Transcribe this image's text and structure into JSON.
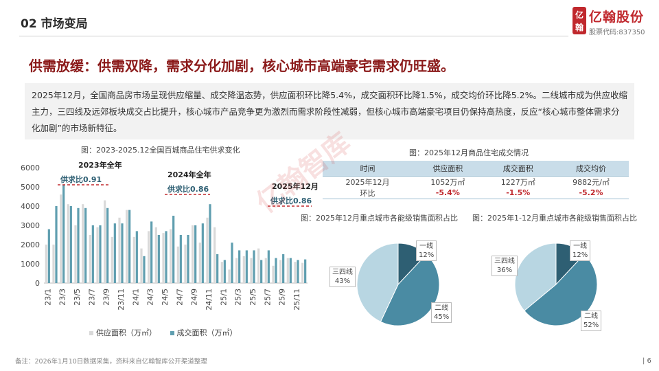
{
  "header": {
    "section_title": "02 市场变局"
  },
  "logo": {
    "mark_top": "亿",
    "mark_bottom": "翰",
    "name": "亿翰股份",
    "code": "股票代码:837350"
  },
  "headline": "供需放缓：供需双降，需求分化加剧，核心城市高端豪宅需求仍旺盛。",
  "summary": "2025年12月，全国商品房市场呈现供应缩量、成交降温态势，供应面积环比降5.4%，成交面积环比降1.5%，成交均价环比降5.2%。二线城市成为供应收缩主力，三四线及远郊板块成交占比提升，核心城市产品竞争更为激烈而需求阶段性减弱，但核心城市高端豪宅项目仍保持高热度，反应“核心城市整体需求分化加剧”的市场新特征。",
  "captions": {
    "bar": "图：2023-2025.12全国百城商品住宅供求变化",
    "table": "图：2025年12月商品住宅成交情况",
    "pie1": "图：2025年12月重点城市各能级销售面积占比",
    "pie2": "图：2025年1-12月重点城市各能级销售面积占比"
  },
  "table": {
    "headers": [
      "时间",
      "供应面积",
      "成交面积",
      "成交均价"
    ],
    "rows": [
      [
        "2025年12月",
        "1052万㎡",
        "1227万㎡",
        "9882元/㎡"
      ],
      [
        "环比",
        "-5.4%",
        "-1.5%",
        "-5.2%"
      ]
    ]
  },
  "legend": {
    "supply": "供应面积（万㎡）",
    "deal": "成交面积（万㎡）"
  },
  "annotations": [
    {
      "title": "2023年全年",
      "value": "供求比0.91"
    },
    {
      "title": "2024年全年",
      "value": "供求比0.86"
    },
    {
      "title": "2025年12月",
      "value": "供求比0.86"
    }
  ],
  "watermark": "亿翰智库",
  "footnote": "备注：2026年1月10日数据采集，资料来自亿翰智库公开渠道整理",
  "page_number": "| 6",
  "colors": {
    "accent": "#8b1a1a",
    "brand": "#c0282d",
    "supply": "#d9d9d9",
    "deal": "#5f9eaf",
    "pie_tier1": "#2e5f73",
    "pie_tier2": "#4a8ba3",
    "pie_tier34": "#b8d6e2"
  },
  "chart_data": [
    {
      "type": "bar",
      "title": "",
      "ylim": [
        0,
        6000
      ],
      "yticks": [
        0,
        1000,
        2000,
        3000,
        4000,
        5000,
        6000
      ],
      "x_tick_labels": [
        "23/1",
        "23/3",
        "23/5",
        "23/7",
        "23/9",
        "23/11",
        "24/1",
        "24/3",
        "24/5",
        "24/7",
        "24/9",
        "24/11",
        "25/1",
        "25/3",
        "25/5",
        "25/7",
        "25/9",
        "25/11"
      ],
      "categories": [
        "23/1",
        "23/2",
        "23/3",
        "23/4",
        "23/5",
        "23/6",
        "23/7",
        "23/8",
        "23/9",
        "23/10",
        "23/11",
        "23/12",
        "24/1",
        "24/2",
        "24/3",
        "24/4",
        "24/5",
        "24/6",
        "24/7",
        "24/8",
        "24/9",
        "24/10",
        "24/11",
        "24/12",
        "25/1",
        "25/2",
        "25/3",
        "25/4",
        "25/5",
        "25/6",
        "25/7",
        "25/8",
        "25/9",
        "25/10",
        "25/11",
        "25/12"
      ],
      "series": [
        {
          "name": "供应面积（万㎡）",
          "values": [
            2000,
            2000,
            4600,
            4100,
            3000,
            4100,
            2500,
            2900,
            4300,
            2400,
            3400,
            3800,
            2400,
            1800,
            2700,
            2900,
            2600,
            2800,
            1900,
            2000,
            3000,
            2100,
            3400,
            2900,
            1100,
            700,
            1300,
            1400,
            1300,
            1800,
            1300,
            900,
            1200,
            1300,
            1100,
            1050
          ]
        },
        {
          "name": "成交面积（万㎡）",
          "values": [
            2800,
            4000,
            5100,
            4000,
            3900,
            3900,
            3000,
            3000,
            3900,
            3100,
            3100,
            3800,
            2700,
            1400,
            3200,
            2500,
            2700,
            3500,
            2500,
            2500,
            3000,
            3100,
            4100,
            1500,
            1200,
            2100,
            1700,
            1700,
            1700,
            1200,
            1700,
            1300,
            1500,
            1300,
            1200,
            1230
          ]
        }
      ]
    },
    {
      "type": "pie",
      "categories": [
        "一线",
        "二线",
        "三四线"
      ],
      "values": [
        12,
        45,
        43
      ],
      "labels": [
        "12%",
        "45%",
        "43%"
      ]
    },
    {
      "type": "pie",
      "categories": [
        "一线",
        "二线",
        "三四线"
      ],
      "values": [
        12,
        52,
        36
      ],
      "labels": [
        "12%",
        "52%",
        "36%"
      ]
    }
  ]
}
